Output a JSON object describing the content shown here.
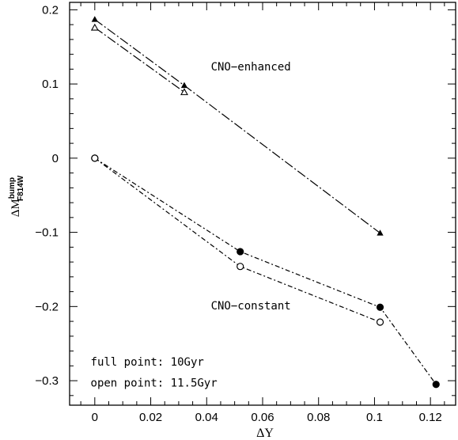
{
  "chart_data": {
    "type": "line",
    "xlabel": "ΔY",
    "ylabel": {
      "main": "ΔM",
      "sup": "bump",
      "sub": "F814W"
    },
    "xlim": [
      -0.009,
      0.129
    ],
    "ylim": [
      -0.333,
      0.21
    ],
    "xticks": [
      {
        "value": 0,
        "label": "0"
      },
      {
        "value": 0.02,
        "label": "0.02"
      },
      {
        "value": 0.04,
        "label": "0.04"
      },
      {
        "value": 0.06,
        "label": "0.06"
      },
      {
        "value": 0.08,
        "label": "0.08"
      },
      {
        "value": 0.1,
        "label": "0.1"
      },
      {
        "value": 0.12,
        "label": "0.12"
      }
    ],
    "yticks": [
      {
        "value": 0.2,
        "label": "0.2"
      },
      {
        "value": 0.1,
        "label": "0.1"
      },
      {
        "value": 0,
        "label": "0"
      },
      {
        "value": -0.1,
        "label": "−0.1"
      },
      {
        "value": -0.2,
        "label": "−0.2"
      },
      {
        "value": -0.3,
        "label": "−0.3"
      }
    ],
    "minor_x_step": 0.005,
    "minor_y_step": 0.02,
    "series": [
      {
        "group": "CNO-enhanced",
        "marker": "filled-triangle",
        "dash": "long-dash-dot",
        "points": [
          {
            "x": 0,
            "y": 0.187
          },
          {
            "x": 0.032,
            "y": 0.098
          },
          {
            "x": 0.102,
            "y": -0.101
          }
        ]
      },
      {
        "group": "CNO-enhanced",
        "marker": "open-triangle",
        "dash": "long-dash-dot",
        "points": [
          {
            "x": 0,
            "y": 0.176
          },
          {
            "x": 0.032,
            "y": 0.089
          }
        ]
      },
      {
        "group": "CNO-constant",
        "marker": "filled-circle",
        "dash": "dash-dot",
        "points": [
          {
            "x": 0,
            "y": 0
          },
          {
            "x": 0.052,
            "y": -0.126
          },
          {
            "x": 0.102,
            "y": -0.201
          },
          {
            "x": 0.122,
            "y": -0.305
          }
        ]
      },
      {
        "group": "CNO-constant",
        "marker": "open-circle",
        "dash": "dash-dot",
        "points": [
          {
            "x": 0,
            "y": 0
          },
          {
            "x": 0.052,
            "y": -0.146
          },
          {
            "x": 0.102,
            "y": -0.221
          }
        ]
      }
    ],
    "annotations": [
      {
        "text": "CNO−enhanced",
        "x": 0.0415,
        "y": 0.1235
      },
      {
        "text": "CNO−constant",
        "x": 0.0415,
        "y": -0.1985
      },
      {
        "text": "full point: 10Gyr",
        "x": -0.0015,
        "y": -0.2745
      },
      {
        "text": "open point: 11.5Gyr",
        "x": -0.0015,
        "y": -0.3025
      }
    ]
  }
}
